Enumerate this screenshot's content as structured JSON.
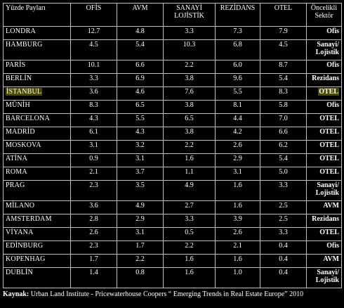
{
  "header": {
    "share": "Yüzde Payları",
    "cols": [
      "OFİS",
      "AVM",
      "SANAYİ LOJİSTİK",
      "REZİDANS",
      "OTEL"
    ],
    "priority": "Öncelikli Sektör"
  },
  "rows": [
    {
      "city": "LONDRA",
      "v": [
        "12.7",
        "4.8",
        "3.3",
        "7.3",
        "7.9"
      ],
      "sector": "Ofis",
      "tall": false,
      "hl": false
    },
    {
      "city": "HAMBURG",
      "v": [
        "4.5",
        "5.4",
        "10.3",
        "6.8",
        "4.5"
      ],
      "sector": "Sanayi/ Lojistik",
      "tall": true,
      "hl": false
    },
    {
      "city": "PARİS",
      "v": [
        "10.1",
        "6.6",
        "2.2",
        "6.0",
        "8.7"
      ],
      "sector": "Ofis",
      "tall": false,
      "hl": false
    },
    {
      "city": "BERLİN",
      "v": [
        "3.3",
        "6.9",
        "3.8",
        "9.6",
        "5.4"
      ],
      "sector": "Rezidans",
      "tall": false,
      "hl": false
    },
    {
      "city": "İSTANBUL",
      "v": [
        "3.6",
        "4.6",
        "7.6",
        "5.5",
        "8.3"
      ],
      "sector": "OTEL",
      "tall": false,
      "hl": true
    },
    {
      "city": "MÜNİH",
      "v": [
        "8.3",
        "6.5",
        "3.8",
        "8.1",
        "5.8"
      ],
      "sector": "Ofis",
      "tall": false,
      "hl": false
    },
    {
      "city": "BARCELONA",
      "v": [
        "4.3",
        "5.5",
        "6.5",
        "4.4",
        "7.0"
      ],
      "sector": "OTEL",
      "tall": false,
      "hl": false
    },
    {
      "city": "MADRİD",
      "v": [
        "6.1",
        "4.3",
        "3.8",
        "4.2",
        "6.6"
      ],
      "sector": "OTEL",
      "tall": false,
      "hl": false
    },
    {
      "city": "MOSKOVA",
      "v": [
        "3.1",
        "3.2",
        "2.2",
        "2.6",
        "6.2"
      ],
      "sector": "OTEL",
      "tall": false,
      "hl": false
    },
    {
      "city": "ATİNA",
      "v": [
        "0.9",
        "3.1",
        "1.6",
        "2.9",
        "5.4"
      ],
      "sector": "OTEL",
      "tall": false,
      "hl": false
    },
    {
      "city": "ROMA",
      "v": [
        "2.1",
        "3.7",
        "1.1",
        "3.1",
        "5.0"
      ],
      "sector": "OTEL",
      "tall": false,
      "hl": false
    },
    {
      "city": "PRAG",
      "v": [
        "2.3",
        "3.5",
        "4.9",
        "1.6",
        "3.3"
      ],
      "sector": "Sanayi/ Lojistik",
      "tall": true,
      "hl": false
    },
    {
      "city": "MİLANO",
      "v": [
        "3.6",
        "4.9",
        "2.7",
        "1.6",
        "2.5"
      ],
      "sector": "AVM",
      "tall": false,
      "hl": false
    },
    {
      "city": "AMSTERDAM",
      "v": [
        "2.8",
        "2.9",
        "3.3",
        "3.9",
        "2.5"
      ],
      "sector": "Rezidans",
      "tall": false,
      "hl": false
    },
    {
      "city": "VİYANA",
      "v": [
        "2.6",
        "3.1",
        "0.5",
        "2.6",
        "3.3"
      ],
      "sector": "OTEL",
      "tall": false,
      "hl": false
    },
    {
      "city": "EDİNBURG",
      "v": [
        "2.3",
        "1.7",
        "2.2",
        "2.1",
        "0.4"
      ],
      "sector": "Ofis",
      "tall": false,
      "hl": false
    },
    {
      "city": "KOPENHAG",
      "v": [
        "1.7",
        "2.2",
        "1.6",
        "1.6",
        "0.4"
      ],
      "sector": "AVM",
      "tall": false,
      "hl": false
    },
    {
      "city": "DUBLİN",
      "v": [
        "1.4",
        "0.8",
        "1.6",
        "1.0",
        "0.4"
      ],
      "sector": "Sanayi/ Lojistik",
      "tall": true,
      "hl": false
    }
  ],
  "source": {
    "label": "Kaynak:",
    "text": " Urban Land Institute - Pricewaterhouse Coopers “ Emerging Trends in Real Estate Europe” 2010"
  },
  "colors": {
    "background": "#000000",
    "text": "#ffffff",
    "border": "#bfbfbf",
    "highlight": "#4a4a00"
  }
}
